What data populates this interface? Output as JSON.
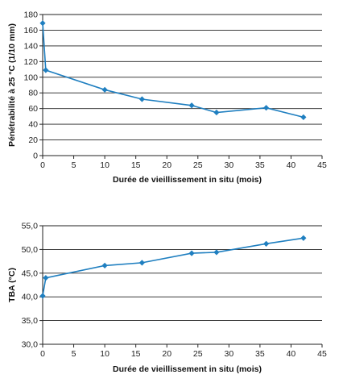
{
  "chart_data": [
    {
      "type": "line",
      "title": "",
      "xlabel": "Durée de vieillissement in situ (mois)",
      "ylabel": "Pénétrabilité à 25 °C (1/10 mm)",
      "xlim": [
        0,
        45
      ],
      "ylim": [
        0,
        180
      ],
      "xticks": [
        0,
        5,
        10,
        15,
        20,
        25,
        30,
        35,
        40,
        45
      ],
      "yticks": [
        0,
        20,
        40,
        60,
        80,
        100,
        120,
        140,
        160,
        180
      ],
      "ytick_labels": [
        "0",
        "20",
        "40",
        "60",
        "80",
        "100",
        "120",
        "140",
        "160",
        "180"
      ],
      "grid": "horizontal",
      "color": "#1f7fc0",
      "marker": "diamond",
      "x": [
        0,
        0.5,
        10,
        16,
        24,
        28,
        36,
        42
      ],
      "y": [
        169,
        109,
        84,
        72,
        64,
        55,
        61,
        49
      ]
    },
    {
      "type": "line",
      "title": "",
      "xlabel": "Durée de vieillissement in situ (mois)",
      "ylabel": "TBA (°C)",
      "xlim": [
        0,
        45
      ],
      "ylim": [
        30,
        55
      ],
      "xticks": [
        0,
        5,
        10,
        15,
        20,
        25,
        30,
        35,
        40,
        45
      ],
      "yticks": [
        30,
        35,
        40,
        45,
        50,
        55
      ],
      "ytick_labels": [
        "30,0",
        "35,0",
        "40,0",
        "45,0",
        "50,0",
        "55,0"
      ],
      "grid": "horizontal",
      "color": "#1f7fc0",
      "marker": "diamond",
      "x": [
        0,
        0.5,
        10,
        16,
        24,
        28,
        36,
        42
      ],
      "y": [
        40.2,
        44,
        46.6,
        47.2,
        49.2,
        49.4,
        51.2,
        52.4
      ]
    }
  ]
}
